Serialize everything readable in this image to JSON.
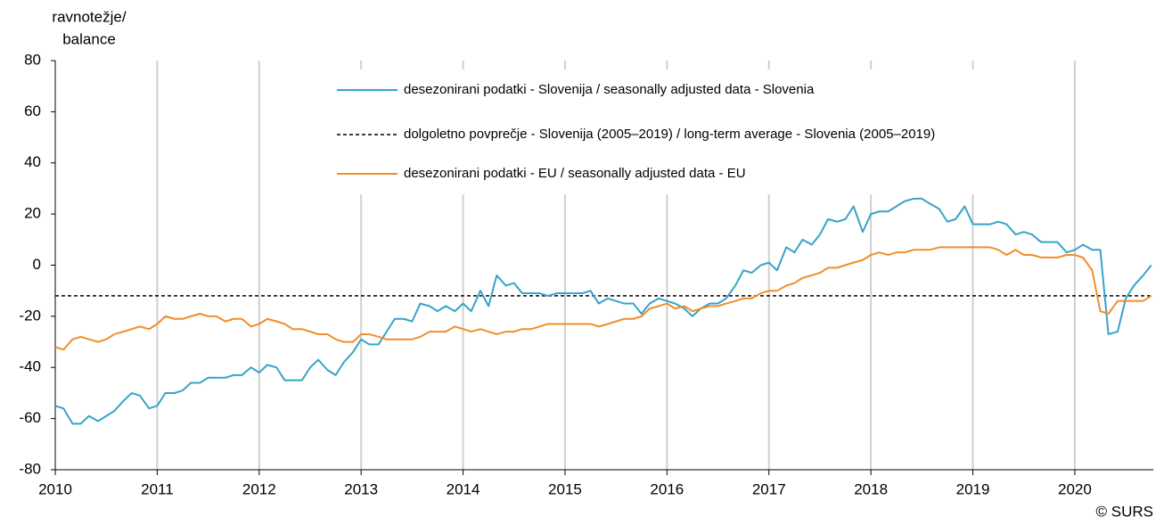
{
  "chart_data": {
    "type": "line",
    "ylabel": [
      "ravnotežje/",
      "balance"
    ],
    "source": "© SURS",
    "x": [
      2010,
      2010.08,
      2010.17,
      2010.25,
      2010.33,
      2010.42,
      2010.5,
      2010.58,
      2010.67,
      2010.75,
      2010.83,
      2010.92,
      2011,
      2011.08,
      2011.17,
      2011.25,
      2011.33,
      2011.42,
      2011.5,
      2011.58,
      2011.67,
      2011.75,
      2011.83,
      2011.92,
      2012,
      2012.08,
      2012.17,
      2012.25,
      2012.33,
      2012.42,
      2012.5,
      2012.58,
      2012.67,
      2012.75,
      2012.83,
      2012.92,
      2013,
      2013.08,
      2013.17,
      2013.25,
      2013.33,
      2013.42,
      2013.5,
      2013.58,
      2013.67,
      2013.75,
      2013.83,
      2013.92,
      2014,
      2014.08,
      2014.17,
      2014.25,
      2014.33,
      2014.42,
      2014.5,
      2014.58,
      2014.67,
      2014.75,
      2014.83,
      2014.92,
      2015,
      2015.08,
      2015.17,
      2015.25,
      2015.33,
      2015.42,
      2015.5,
      2015.58,
      2015.67,
      2015.75,
      2015.83,
      2015.92,
      2016,
      2016.08,
      2016.17,
      2016.25,
      2016.33,
      2016.42,
      2016.5,
      2016.58,
      2016.67,
      2016.75,
      2016.83,
      2016.92,
      2017,
      2017.08,
      2017.17,
      2017.25,
      2017.33,
      2017.42,
      2017.5,
      2017.58,
      2017.67,
      2017.75,
      2017.83,
      2017.92,
      2018,
      2018.08,
      2018.17,
      2018.25,
      2018.33,
      2018.42,
      2018.5,
      2018.58,
      2018.67,
      2018.75,
      2018.83,
      2018.92,
      2019,
      2019.08,
      2019.17,
      2019.25,
      2019.33,
      2019.42,
      2019.5,
      2019.58,
      2019.67,
      2019.75,
      2019.83,
      2019.92,
      2020,
      2020.08,
      2020.17,
      2020.25,
      2020.33,
      2020.42,
      2020.5,
      2020.58,
      2020.67,
      2020.75
    ],
    "series": [
      {
        "name": "desezonirani podatki - Slovenija / seasonally adjusted data - Slovenia",
        "color": "#36a4c8",
        "values": [
          -55,
          -56,
          -62,
          -62,
          -59,
          -61,
          -59,
          -57,
          -53,
          -50,
          -51,
          -56,
          -55,
          -50,
          -50,
          -49,
          -46,
          -46,
          -44,
          -44,
          -44,
          -43,
          -43,
          -40,
          -42,
          -39,
          -40,
          -45,
          -45,
          -45,
          -40,
          -37,
          -41,
          -43,
          -38,
          -34,
          -29,
          -31,
          -31,
          -26,
          -21,
          -21,
          -22,
          -15,
          -16,
          -18,
          -16,
          -18,
          -15,
          -18,
          -10,
          -16,
          -4,
          -8,
          -7,
          -11,
          -11,
          -11,
          -12,
          -11,
          -11,
          -11,
          -11,
          -10,
          -15,
          -13,
          -14,
          -15,
          -15,
          -19,
          -15,
          -13,
          -14,
          -15,
          -17,
          -20,
          -17,
          -15,
          -15,
          -13,
          -8,
          -2,
          -3,
          0,
          1,
          -2,
          7,
          5,
          10,
          8,
          12,
          18,
          17,
          18,
          23,
          13,
          20,
          21,
          21,
          23,
          25,
          26,
          26,
          24,
          22,
          17,
          18,
          23,
          16,
          16,
          16,
          17,
          16,
          12,
          13,
          12,
          9,
          9,
          9,
          5,
          6,
          8,
          6,
          6,
          -27,
          -26,
          -13,
          -8,
          -4,
          0
        ]
      },
      {
        "name": "desezonirani podatki - EU / seasonally adjusted data - EU",
        "color": "#f18d2a",
        "values": [
          -32,
          -33,
          -29,
          -28,
          -29,
          -30,
          -29,
          -27,
          -26,
          -25,
          -24,
          -25,
          -23,
          -20,
          -21,
          -21,
          -20,
          -19,
          -20,
          -20,
          -22,
          -21,
          -21,
          -24,
          -23,
          -21,
          -22,
          -23,
          -25,
          -25,
          -26,
          -27,
          -27,
          -29,
          -30,
          -30,
          -27,
          -27,
          -28,
          -29,
          -29,
          -29,
          -29,
          -28,
          -26,
          -26,
          -26,
          -24,
          -25,
          -26,
          -25,
          -26,
          -27,
          -26,
          -26,
          -25,
          -25,
          -24,
          -23,
          -23,
          -23,
          -23,
          -23,
          -23,
          -24,
          -23,
          -22,
          -21,
          -21,
          -20,
          -17,
          -16,
          -15,
          -17,
          -16,
          -18,
          -17,
          -16,
          -16,
          -15,
          -14,
          -13,
          -13,
          -11,
          -10,
          -10,
          -8,
          -7,
          -5,
          -4,
          -3,
          -1,
          -1,
          0,
          1,
          2,
          4,
          5,
          4,
          5,
          5,
          6,
          6,
          6,
          7,
          7,
          7,
          7,
          7,
          7,
          7,
          6,
          4,
          6,
          4,
          4,
          3,
          3,
          3,
          4,
          4,
          3,
          -2,
          -18,
          -19,
          -14,
          -14,
          -14,
          -14,
          -12
        ]
      }
    ],
    "reference_line": {
      "name": "dolgoletno povprečje - Slovenija (2005–2019) / long-term average - Slovenia (2005–2019)",
      "value": -12,
      "color": "#000000",
      "dashed": true
    },
    "xlim": [
      2010,
      2020.77
    ],
    "xticks": [
      2010,
      2011,
      2012,
      2013,
      2014,
      2015,
      2016,
      2017,
      2018,
      2019,
      2020
    ],
    "ylim": [
      -80,
      80
    ],
    "yticks": [
      -80,
      -60,
      -40,
      -20,
      0,
      20,
      40,
      60,
      80
    ],
    "grid": "x",
    "legend": "top"
  }
}
